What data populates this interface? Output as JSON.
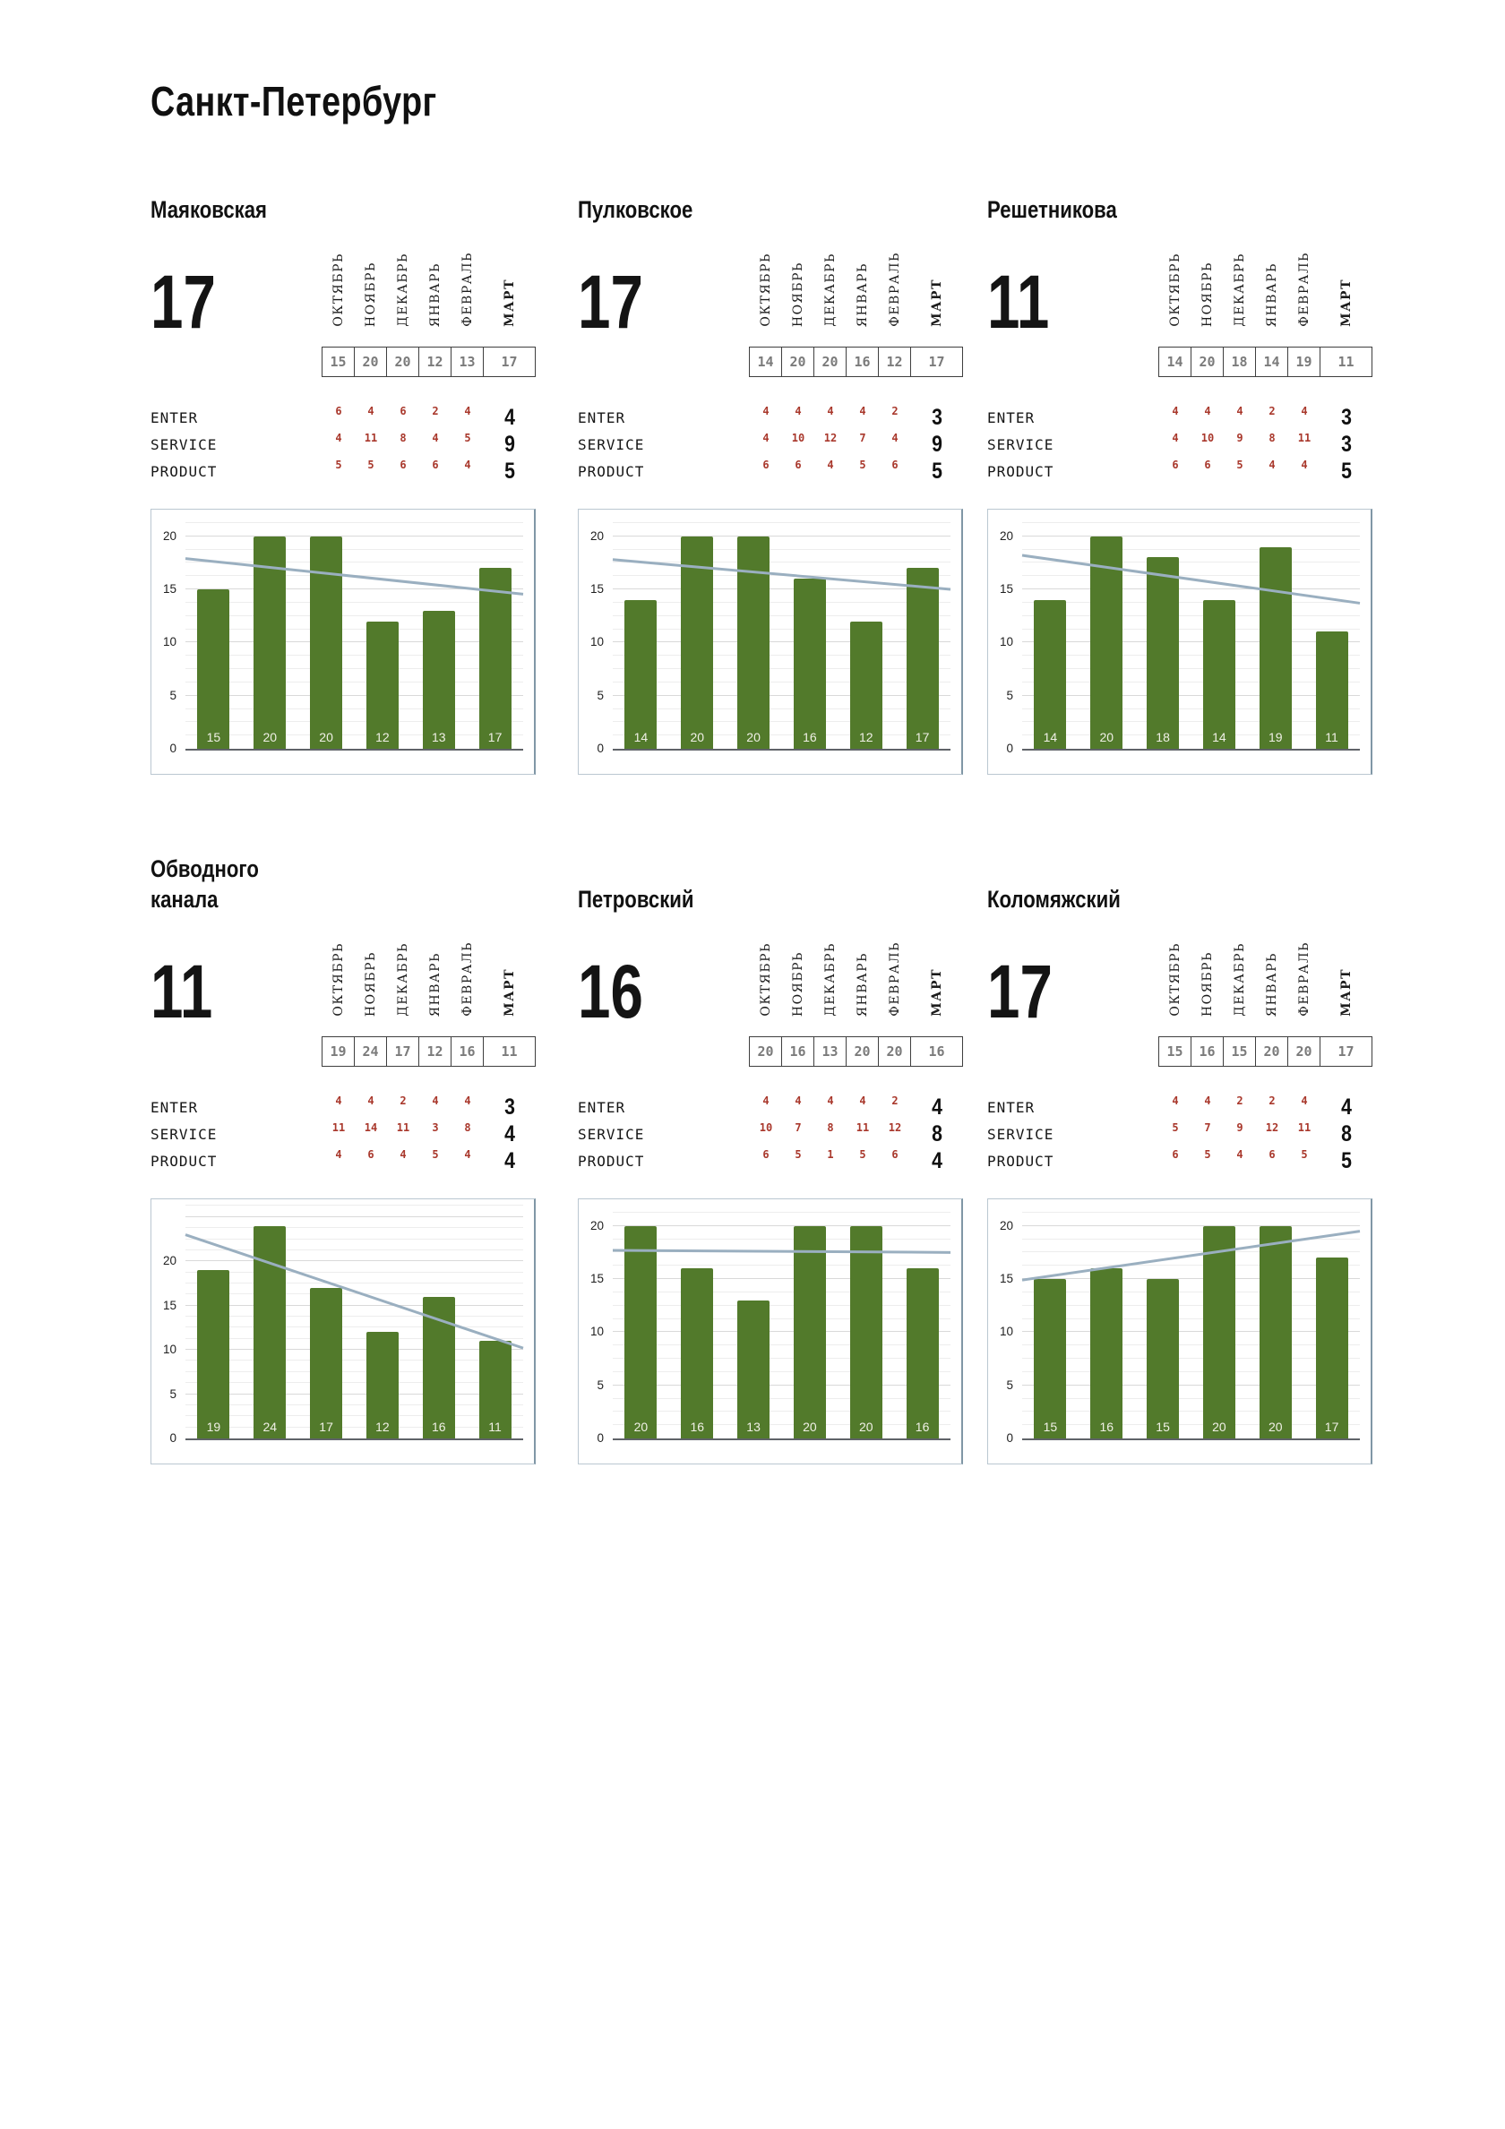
{
  "page_title": "Санкт-Петербург",
  "months": [
    "ОКТЯБРЬ",
    "НОЯБРЬ",
    "ДЕКАБРЬ",
    "ЯНВАРЬ",
    "ФЕВРАЛЬ",
    "МАРТ"
  ],
  "row_labels": [
    "ENTER",
    "SERVICE",
    "PRODUCT"
  ],
  "colors": {
    "bar_green": "#527a2b",
    "trend_line": "#9aafc0",
    "accent_red": "#a9382c",
    "box_value_gray": "#7b7b7b",
    "grid_major": "#d9d9d9",
    "grid_minor": "#ededed",
    "axis_line": "#5f6368",
    "chart_border": "#bac7d1",
    "text_black": "#111111"
  },
  "panels": [
    {
      "title_lines": [
        "Маяковская"
      ],
      "big_number": "17",
      "month_values": [
        "15",
        "20",
        "20",
        "12",
        "13",
        "17"
      ],
      "rows": [
        {
          "label": "ENTER",
          "values": [
            "6",
            "4",
            "6",
            "2",
            "4"
          ],
          "final": "4"
        },
        {
          "label": "SERVICE",
          "values": [
            "4",
            "11",
            "8",
            "4",
            "5"
          ],
          "final": "9"
        },
        {
          "label": "PRODUCT",
          "values": [
            "5",
            "5",
            "6",
            "6",
            "4"
          ],
          "final": "5"
        }
      ]
    },
    {
      "title_lines": [
        "Пулковское"
      ],
      "big_number": "17",
      "month_values": [
        "14",
        "20",
        "20",
        "16",
        "12",
        "17"
      ],
      "rows": [
        {
          "label": "ENTER",
          "values": [
            "4",
            "4",
            "4",
            "4",
            "2"
          ],
          "final": "3"
        },
        {
          "label": "SERVICE",
          "values": [
            "4",
            "10",
            "12",
            "7",
            "4"
          ],
          "final": "9"
        },
        {
          "label": "PRODUCT",
          "values": [
            "6",
            "6",
            "4",
            "5",
            "6"
          ],
          "final": "5"
        }
      ]
    },
    {
      "title_lines": [
        "Решетникова"
      ],
      "big_number": "11",
      "month_values": [
        "14",
        "20",
        "18",
        "14",
        "19",
        "11"
      ],
      "rows": [
        {
          "label": "ENTER",
          "values": [
            "4",
            "4",
            "4",
            "2",
            "4"
          ],
          "final": "3"
        },
        {
          "label": "SERVICE",
          "values": [
            "4",
            "10",
            "9",
            "8",
            "11"
          ],
          "final": "3"
        },
        {
          "label": "PRODUCT",
          "values": [
            "6",
            "6",
            "5",
            "4",
            "4"
          ],
          "final": "5"
        }
      ]
    },
    {
      "title_lines": [
        "Обводного",
        "канала"
      ],
      "big_number": "11",
      "month_values": [
        "19",
        "24",
        "17",
        "12",
        "16",
        "11"
      ],
      "rows": [
        {
          "label": "ENTER",
          "values": [
            "4",
            "4",
            "2",
            "4",
            "4"
          ],
          "final": "3"
        },
        {
          "label": "SERVICE",
          "values": [
            "11",
            "14",
            "11",
            "3",
            "8"
          ],
          "final": "4"
        },
        {
          "label": "PRODUCT",
          "values": [
            "4",
            "6",
            "4",
            "5",
            "4"
          ],
          "final": "4"
        }
      ]
    },
    {
      "title_lines": [
        "Петровский"
      ],
      "big_number": "16",
      "month_values": [
        "20",
        "16",
        "13",
        "20",
        "20",
        "16"
      ],
      "rows": [
        {
          "label": "ENTER",
          "values": [
            "4",
            "4",
            "4",
            "4",
            "2"
          ],
          "final": "4"
        },
        {
          "label": "SERVICE",
          "values": [
            "10",
            "7",
            "8",
            "11",
            "12"
          ],
          "final": "8"
        },
        {
          "label": "PRODUCT",
          "values": [
            "6",
            "5",
            "1",
            "5",
            "6"
          ],
          "final": "4"
        }
      ]
    },
    {
      "title_lines": [
        "Коломяжский"
      ],
      "big_number": "17",
      "month_values": [
        "15",
        "16",
        "15",
        "20",
        "20",
        "17"
      ],
      "rows": [
        {
          "label": "ENTER",
          "values": [
            "4",
            "4",
            "2",
            "2",
            "4"
          ],
          "final": "4"
        },
        {
          "label": "SERVICE",
          "values": [
            "5",
            "7",
            "9",
            "12",
            "11"
          ],
          "final": "8"
        },
        {
          "label": "PRODUCT",
          "values": [
            "6",
            "5",
            "4",
            "6",
            "5"
          ],
          "final": "5"
        }
      ]
    }
  ],
  "chart_data": [
    {
      "type": "bar",
      "title": "Маяковская",
      "categories": [
        "ОКТЯБРЬ",
        "НОЯБРЬ",
        "ДЕКАБРЬ",
        "ЯНВАРЬ",
        "ФЕВРАЛЬ",
        "МАРТ"
      ],
      "values": [
        15,
        20,
        20,
        12,
        13,
        17
      ],
      "trend_line": {
        "start": 17.9,
        "end": 14.55
      },
      "ylim": [
        0,
        22.5
      ],
      "yticks": [
        0,
        5,
        10,
        15,
        20
      ],
      "grid": "minor+major",
      "legend": "none",
      "bar_labels": true
    },
    {
      "type": "bar",
      "title": "Пулковское",
      "categories": [
        "ОКТЯБРЬ",
        "НОЯБРЬ",
        "ДЕКАБРЬ",
        "ЯНВАРЬ",
        "ФЕВРАЛЬ",
        "МАРТ"
      ],
      "values": [
        14,
        20,
        20,
        16,
        12,
        17
      ],
      "trend_line": {
        "start": 17.8,
        "end": 15.0
      },
      "ylim": [
        0,
        22.5
      ],
      "yticks": [
        0,
        5,
        10,
        15,
        20
      ],
      "grid": "minor+major",
      "legend": "none",
      "bar_labels": true
    },
    {
      "type": "bar",
      "title": "Решетникова",
      "categories": [
        "ОКТЯБРЬ",
        "НОЯБРЬ",
        "ДЕКАБРЬ",
        "ЯНВАРЬ",
        "ФЕВРАЛЬ",
        "МАРТ"
      ],
      "values": [
        14,
        20,
        18,
        14,
        19,
        11
      ],
      "trend_line": {
        "start": 18.2,
        "end": 13.7
      },
      "ylim": [
        0,
        22.5
      ],
      "yticks": [
        0,
        5,
        10,
        15,
        20
      ],
      "grid": "minor+major",
      "legend": "none",
      "bar_labels": true
    },
    {
      "type": "bar",
      "title": "Обводного канала",
      "categories": [
        "ОКТЯБРЬ",
        "НОЯБРЬ",
        "ДЕКАБРЬ",
        "ЯНВАРЬ",
        "ФЕВРАЛЬ",
        "МАРТ"
      ],
      "values": [
        19,
        24,
        17,
        12,
        16,
        11
      ],
      "trend_line": {
        "start": 23.0,
        "end": 10.2
      },
      "ylim": [
        0,
        27
      ],
      "yticks": [
        0,
        5,
        10,
        15,
        20
      ],
      "grid": "minor+major",
      "legend": "none",
      "bar_labels": true
    },
    {
      "type": "bar",
      "title": "Петровский",
      "categories": [
        "ОКТЯБРЬ",
        "НОЯБРЬ",
        "ДЕКАБРЬ",
        "ЯНВАРЬ",
        "ФЕВРАЛЬ",
        "МАРТ"
      ],
      "values": [
        20,
        16,
        13,
        20,
        20,
        16
      ],
      "trend_line": {
        "start": 17.7,
        "end": 17.5
      },
      "ylim": [
        0,
        22.5
      ],
      "yticks": [
        0,
        5,
        10,
        15,
        20
      ],
      "grid": "minor+major",
      "legend": "none",
      "bar_labels": true
    },
    {
      "type": "bar",
      "title": "Коломяжский",
      "categories": [
        "ОКТЯБРЬ",
        "НОЯБРЬ",
        "ДЕКАБРЬ",
        "ЯНВАРЬ",
        "ФЕВРАЛЬ",
        "МАРТ"
      ],
      "values": [
        15,
        16,
        15,
        20,
        20,
        17
      ],
      "trend_line": {
        "start": 14.9,
        "end": 19.5
      },
      "ylim": [
        0,
        22.5
      ],
      "yticks": [
        0,
        5,
        10,
        15,
        20
      ],
      "grid": "minor+major",
      "legend": "none",
      "bar_labels": true
    }
  ]
}
